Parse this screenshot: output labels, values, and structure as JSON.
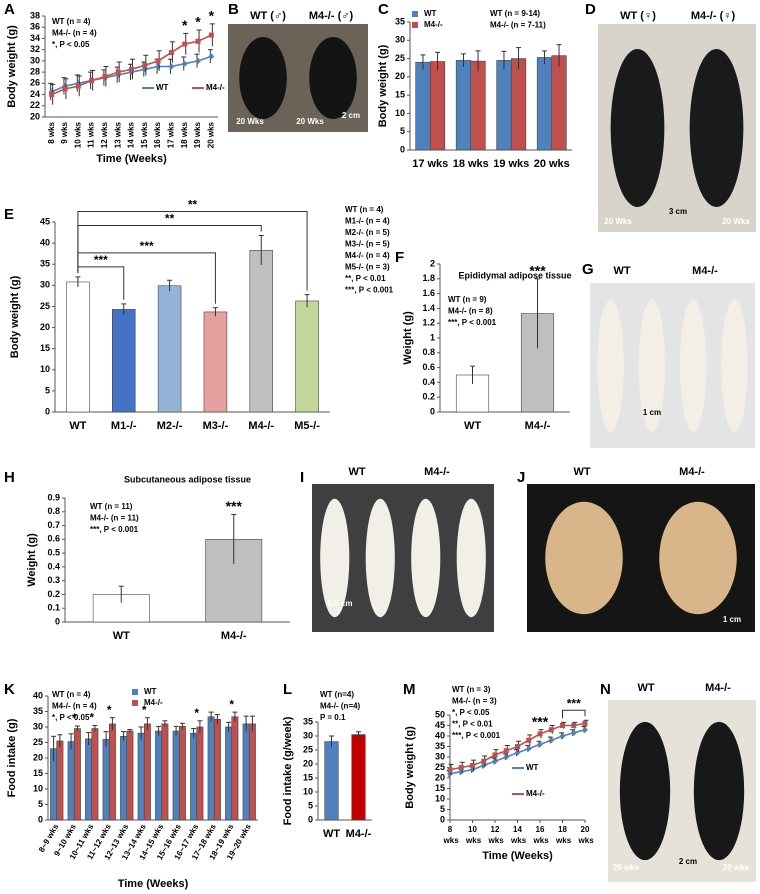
{
  "chart_data": [
    {
      "type": "line",
      "panel": "A",
      "ylabel": "Body weight (g)",
      "xlabel": "Time (Weeks)",
      "categories": [
        "8 wks",
        "9 wks",
        "10 wks",
        "11 wks",
        "12 wks",
        "13 wks",
        "14 wks",
        "15 wks",
        "16 wks",
        "17 wks",
        "18 wks",
        "19 wks",
        "20 wks"
      ],
      "ylim": [
        20,
        38
      ],
      "yticks": [
        20,
        22,
        24,
        26,
        28,
        30,
        32,
        34,
        36,
        38
      ],
      "series": [
        {
          "name": "WT",
          "color": "#4f81bd",
          "marker": "diamond",
          "values": [
            24.5,
            25.5,
            26,
            26.5,
            27,
            27.5,
            28,
            28.5,
            29,
            29,
            29.5,
            30,
            30.8
          ],
          "errors": [
            1.5,
            1.5,
            1.5,
            1.5,
            1.4,
            1.4,
            1.4,
            1.3,
            1.3,
            1.3,
            1.2,
            1.2,
            1.2
          ]
        },
        {
          "name": "M4-/-",
          "color": "#c0504d",
          "marker": "square",
          "values": [
            24,
            25,
            25.5,
            26.5,
            27.2,
            28,
            28.5,
            29.2,
            30,
            31.5,
            33,
            33.5,
            34.6
          ],
          "errors": [
            1.8,
            1.8,
            1.8,
            1.8,
            1.8,
            1.8,
            1.8,
            1.8,
            1.8,
            1.9,
            1.9,
            2,
            2
          ]
        }
      ],
      "star_labels": [
        null,
        null,
        null,
        null,
        null,
        null,
        null,
        null,
        null,
        null,
        "*",
        "*",
        "*"
      ],
      "notes": [
        "WT (n = 4)",
        "M4-/- (n = 4)",
        "*, P < 0.05"
      ]
    },
    {
      "type": "bar",
      "panel": "C",
      "ylabel": "Body weight (g)",
      "categories": [
        "17 wks",
        "18 wks",
        "19 wks",
        "20 wks"
      ],
      "ylim": [
        0,
        35
      ],
      "yticks": [
        0,
        5,
        10,
        15,
        20,
        25,
        30,
        35
      ],
      "series": [
        {
          "name": "WT",
          "color": "#4f81bd",
          "values": [
            24,
            24.5,
            24.5,
            25.3
          ],
          "errors": [
            2,
            1.8,
            2.5,
            1.8
          ]
        },
        {
          "name": "M4-/-",
          "color": "#c0504d",
          "values": [
            24.2,
            24.3,
            25,
            25.8
          ],
          "errors": [
            2.5,
            2.8,
            3,
            3
          ]
        }
      ],
      "notes": [
        "WT (n = 9-14)",
        "M4-/- (n = 7-11)"
      ]
    },
    {
      "type": "bar",
      "panel": "E",
      "ylabel": "Body weight (g)",
      "categories": [
        "WT",
        "M1-/-",
        "M2-/-",
        "M3-/-",
        "M4-/-",
        "M5-/-"
      ],
      "ylim": [
        0,
        45
      ],
      "yticks": [
        0,
        5,
        10,
        15,
        20,
        25,
        30,
        35,
        40,
        45
      ],
      "values": [
        30.8,
        24.3,
        29.9,
        23.7,
        38.3,
        26.3
      ],
      "errors": [
        1.2,
        1.3,
        1.3,
        1,
        3.5,
        1.5
      ],
      "colors": [
        "#ffffff",
        "#4472c4",
        "#95b3d7",
        "#e6a0a0",
        "#bfbfbf",
        "#c3d69b"
      ],
      "brackets": [
        {
          "from": 0,
          "to": 1,
          "label": "***"
        },
        {
          "from": 0,
          "to": 3,
          "label": "***"
        },
        {
          "from": 0,
          "to": 4,
          "label": "**"
        },
        {
          "from": 0,
          "to": 5,
          "label": "**"
        }
      ],
      "notes": [
        "WT (n = 4)",
        "M1-/- (n = 4)",
        "M2-/- (n = 5)",
        "M3-/- (n = 5)",
        "M4-/- (n = 4)",
        "M5-/- (n = 3)",
        "**, P < 0.01",
        "***, P < 0.001"
      ]
    },
    {
      "type": "bar",
      "panel": "F",
      "title": "Epididymal adipose tissue",
      "ylabel": "Weight (g)",
      "categories": [
        "WT",
        "M4-/-"
      ],
      "ylim": [
        0,
        2
      ],
      "yticks": [
        0,
        0.2,
        0.4,
        0.6,
        0.8,
        1,
        1.2,
        1.4,
        1.6,
        1.8,
        2
      ],
      "values": [
        0.5,
        1.33
      ],
      "errors": [
        0.12,
        0.47
      ],
      "colors": [
        "#ffffff",
        "#bfbfbf"
      ],
      "star_labels": [
        null,
        "***"
      ],
      "notes": [
        "WT (n = 9)",
        "M4-/- (n = 8)",
        "***, P < 0.001"
      ]
    },
    {
      "type": "bar",
      "panel": "H",
      "title": "Subcutaneous adipose tissue",
      "ylabel": "Weight (g)",
      "categories": [
        "WT",
        "M4-/-"
      ],
      "ylim": [
        0,
        0.9
      ],
      "yticks": [
        0,
        0.1,
        0.2,
        0.3,
        0.4,
        0.5,
        0.6,
        0.7,
        0.8,
        0.9
      ],
      "values": [
        0.2,
        0.6
      ],
      "errors": [
        0.06,
        0.18
      ],
      "colors": [
        "#ffffff",
        "#bfbfbf"
      ],
      "star_labels": [
        null,
        "***"
      ],
      "notes": [
        "WT (n = 11)",
        "M4-/- (n = 11)",
        "***, P < 0.001"
      ]
    },
    {
      "type": "bar",
      "panel": "K",
      "ylabel": "Food intake (g)",
      "xlabel": "Time (Weeks)",
      "categories": [
        "8~9 wks",
        "9~10 wks",
        "10~11 wks",
        "11~12 wks",
        "12~13 wks",
        "13~14 wks",
        "14~15 wks",
        "15~16 wks",
        "16~17 wks",
        "17~18 wks",
        "18~19 wks",
        "19~20 wks"
      ],
      "ylim": [
        0,
        40
      ],
      "yticks": [
        0,
        5,
        10,
        15,
        20,
        25,
        30,
        35,
        40
      ],
      "series": [
        {
          "name": "WT",
          "color": "#4f81bd",
          "values": [
            23,
            25.3,
            26.2,
            26,
            27,
            28,
            28.7,
            28.7,
            28,
            33.3,
            30,
            31
          ],
          "errors": [
            4,
            2.5,
            2,
            2.5,
            1.5,
            2,
            1.5,
            1.5,
            1.5,
            1.5,
            1.5,
            2.5
          ]
        },
        {
          "name": "M4-/-",
          "color": "#c0504d",
          "values": [
            25.5,
            29.5,
            29.5,
            31,
            28.7,
            31,
            31,
            30.2,
            30,
            32.5,
            33.3,
            31
          ],
          "errors": [
            2,
            0.8,
            1,
            2,
            0.5,
            2,
            1,
            1,
            2,
            1.5,
            1.5,
            2.5
          ]
        }
      ],
      "star_labels": [
        null,
        "*",
        "*",
        "*",
        null,
        "*",
        null,
        null,
        "*",
        null,
        "*",
        null
      ],
      "notes": [
        "WT (n = 4)",
        "M4-/- (n = 4)",
        "*, P < 0.05"
      ]
    },
    {
      "type": "bar",
      "panel": "L",
      "ylabel": "Food intake (g/week)",
      "categories": [
        "WT",
        "M4-/-"
      ],
      "ylim": [
        0,
        35
      ],
      "yticks": [
        0,
        5,
        10,
        15,
        20,
        25,
        30,
        35
      ],
      "values": [
        28,
        30.5
      ],
      "errors": [
        2,
        1
      ],
      "colors": [
        "#4f81bd",
        "#c00000"
      ],
      "notes": [
        "WT (n=4)",
        "M4-/- (n=4)",
        "P = 0.1"
      ]
    },
    {
      "type": "line",
      "panel": "M",
      "ylabel": "Body weight (g)",
      "xlabel": "Time (Weeks)",
      "x": [
        8,
        9,
        10,
        11,
        12,
        13,
        14,
        15,
        16,
        17,
        18,
        19,
        20
      ],
      "xlim": [
        8,
        20
      ],
      "xticks": [
        {
          "value": 8,
          "label": "8 wks"
        },
        {
          "value": 10,
          "label": "10 wks"
        },
        {
          "value": 12,
          "label": "12 wks"
        },
        {
          "value": 14,
          "label": "14 wks"
        },
        {
          "value": 16,
          "label": "16 wks"
        },
        {
          "value": 18,
          "label": "18 wks"
        },
        {
          "value": 20,
          "label": "20 wks"
        }
      ],
      "ylim": [
        0,
        50
      ],
      "yticks": [
        0,
        5,
        10,
        15,
        20,
        25,
        30,
        35,
        40,
        45,
        50
      ],
      "series": [
        {
          "name": "WT",
          "color": "#4f81bd",
          "marker": "diamond",
          "values": [
            22,
            23,
            24,
            26,
            28,
            30,
            32,
            34,
            36,
            38,
            40,
            41.5,
            43
          ],
          "errors": [
            1.5,
            1.5,
            1.5,
            1.5,
            1.5,
            1.5,
            1.5,
            1.5,
            1.5,
            1.5,
            1.5,
            1.5,
            1.5
          ]
        },
        {
          "name": "M4-/-",
          "color": "#c0504d",
          "marker": "square",
          "values": [
            24,
            25,
            26,
            28,
            31,
            33,
            35,
            38,
            41,
            43,
            45,
            45,
            46
          ],
          "errors": [
            2.5,
            2.5,
            2.5,
            2.5,
            2.5,
            2.5,
            2.5,
            2.5,
            2,
            2,
            1.5,
            1.5,
            1.5
          ]
        }
      ],
      "star_labels": [
        null,
        null,
        null,
        null,
        null,
        null,
        null,
        null,
        "***",
        null,
        null,
        null,
        null
      ],
      "brackets": [
        {
          "from": 10,
          "to": 12,
          "label": "***"
        }
      ],
      "notes": [
        "WT (n = 3)",
        "M4-/- (n = 3)",
        "*, P < 0.05",
        "**, P < 0.01",
        "***, P < 0.001"
      ]
    }
  ],
  "images": [
    {
      "panel": "B",
      "texts": [
        "WT (♂)",
        "M4-/- (♂)",
        "20 Wks",
        "20 Wks",
        "2 cm"
      ]
    },
    {
      "panel": "D",
      "texts": [
        "WT (♀)",
        "M4-/- (♀)",
        "20 Wks",
        "3 cm",
        "20 Wks"
      ]
    },
    {
      "panel": "G",
      "texts": [
        "WT",
        "M4-/-",
        "1 cm"
      ]
    },
    {
      "panel": "I",
      "texts": [
        "WT",
        "M4-/-",
        "0.5 cm"
      ]
    },
    {
      "panel": "J",
      "texts": [
        "WT",
        "M4-/-",
        "1 cm"
      ]
    },
    {
      "panel": "N",
      "texts": [
        "WT",
        "M4-/-",
        "20 wks",
        "2 cm",
        "20 wks"
      ]
    }
  ]
}
